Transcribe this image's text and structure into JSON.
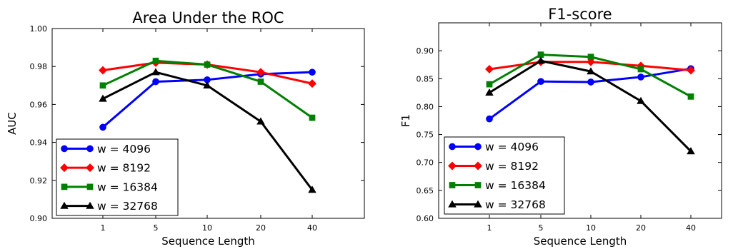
{
  "chart_data": [
    {
      "type": "line",
      "title": "Area Under the ROC",
      "xlabel": "Sequence Length",
      "ylabel": "AUC",
      "categories": [
        "1",
        "5",
        "10",
        "20",
        "40"
      ],
      "ylim": [
        0.9,
        1.0
      ],
      "yticks": [
        "0.90",
        "0.92",
        "0.94",
        "0.96",
        "0.98",
        "1.00"
      ],
      "grid": false,
      "legend_position": "bottom-left",
      "series": [
        {
          "name": "w = 4096",
          "color": "#0000ff",
          "marker": "circle",
          "values": [
            0.948,
            0.972,
            0.973,
            0.976,
            0.977
          ]
        },
        {
          "name": "w = 8192",
          "color": "#ff0000",
          "marker": "diamond",
          "values": [
            0.978,
            0.982,
            0.981,
            0.977,
            0.971
          ]
        },
        {
          "name": "w = 16384",
          "color": "#008000",
          "marker": "square",
          "values": [
            0.97,
            0.983,
            0.981,
            0.972,
            0.953
          ]
        },
        {
          "name": "w = 32768",
          "color": "#000000",
          "marker": "triangle",
          "values": [
            0.963,
            0.977,
            0.97,
            0.951,
            0.915
          ]
        }
      ]
    },
    {
      "type": "line",
      "title": "F1-score",
      "xlabel": "Sequence Length",
      "ylabel": "F1",
      "categories": [
        "1",
        "5",
        "10",
        "20",
        "40"
      ],
      "ylim": [
        0.6,
        0.95
      ],
      "yticks": [
        "0.60",
        "0.65",
        "0.70",
        "0.75",
        "0.80",
        "0.85",
        "0.90"
      ],
      "grid": false,
      "legend_position": "bottom-left",
      "series": [
        {
          "name": "w = 4096",
          "color": "#0000ff",
          "marker": "circle",
          "values": [
            0.778,
            0.845,
            0.844,
            0.853,
            0.868
          ]
        },
        {
          "name": "w = 8192",
          "color": "#ff0000",
          "marker": "diamond",
          "values": [
            0.867,
            0.88,
            0.88,
            0.873,
            0.865
          ]
        },
        {
          "name": "w = 16384",
          "color": "#008000",
          "marker": "square",
          "values": [
            0.84,
            0.893,
            0.889,
            0.867,
            0.818
          ]
        },
        {
          "name": "w = 32768",
          "color": "#000000",
          "marker": "triangle",
          "values": [
            0.825,
            0.882,
            0.863,
            0.81,
            0.72
          ]
        }
      ]
    }
  ]
}
